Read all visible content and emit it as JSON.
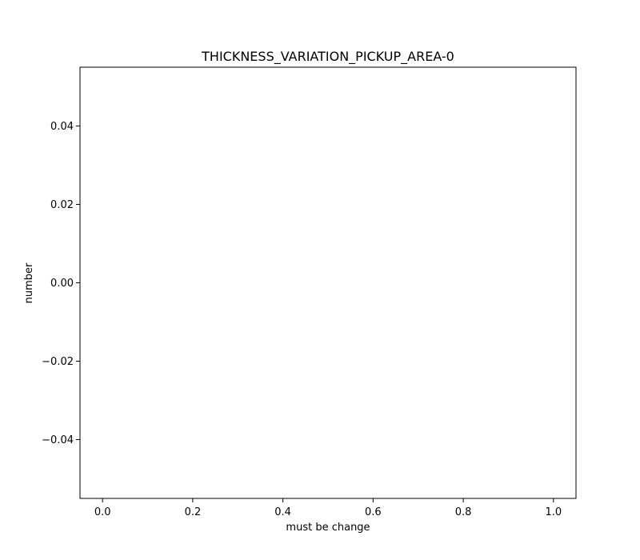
{
  "chart_data": {
    "type": "scatter",
    "title": "THICKNESS_VARIATION_PICKUP_AREA-0",
    "xlabel": "must be change",
    "ylabel": "number",
    "xlim": [
      -0.05,
      1.05
    ],
    "ylim": [
      -0.055,
      0.055
    ],
    "xticks": [
      0.0,
      0.2,
      0.4,
      0.6,
      0.8,
      1.0
    ],
    "xtick_labels": [
      "0.0",
      "0.2",
      "0.4",
      "0.6",
      "0.8",
      "1.0"
    ],
    "yticks": [
      -0.04,
      -0.02,
      0.0,
      0.02,
      0.04
    ],
    "ytick_labels": [
      "−0.04",
      "−0.02",
      "0.00",
      "0.02",
      "0.04"
    ],
    "series": [],
    "grid": false,
    "legend": "none",
    "colors": {
      "axes": "#000000",
      "background": "#ffffff"
    }
  }
}
